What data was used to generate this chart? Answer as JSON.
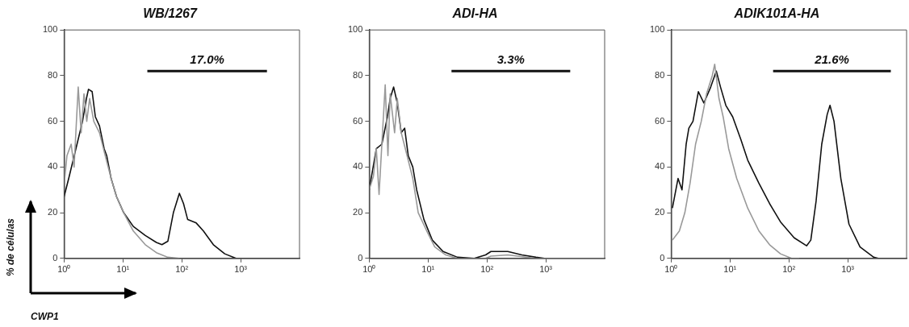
{
  "chart_data": [
    {
      "type": "line",
      "title": "WB/1267",
      "xlabel": "CWP1",
      "ylabel": "% de células",
      "log": "x",
      "xlim": [
        1,
        10000
      ],
      "xticks": [
        {
          "value": 1,
          "label": "10⁰"
        },
        {
          "value": 10,
          "label": "10¹"
        },
        {
          "value": 100,
          "label": "10²"
        },
        {
          "value": 1000,
          "label": "10³"
        }
      ],
      "ylim": [
        0,
        100
      ],
      "yticks": [
        0,
        20,
        40,
        60,
        80,
        100
      ],
      "grid": false,
      "legend": false,
      "marker": "none",
      "line_style": "solid",
      "annotations": [
        {
          "text": "17.0%",
          "x": 270,
          "y": 82
        }
      ],
      "series": [
        {
          "color": "#999999",
          "x": [
            1,
            1.12,
            1.32,
            1.48,
            1.74,
            1.95,
            2.18,
            2.43,
            2.72,
            3.2,
            4,
            5,
            6.3,
            7.8,
            10.3,
            15,
            24,
            37,
            58,
            91
          ],
          "values": [
            32,
            45,
            50,
            40,
            75,
            55,
            72,
            60,
            70,
            60,
            55,
            45,
            35,
            27,
            20,
            12,
            6,
            2.5,
            0.5,
            0
          ]
        },
        {
          "color": "#111111",
          "x": [
            1,
            1.2,
            1.66,
            2.06,
            2.4,
            2.6,
            3,
            3.4,
            4,
            4.8,
            5.3,
            6.3,
            7.8,
            10.3,
            15,
            24,
            37,
            46,
            58,
            72,
            91,
            107,
            126,
            176,
            233,
            344,
            537,
            835,
            10000
          ],
          "values": [
            27,
            35,
            50,
            60,
            70,
            74,
            73,
            62,
            58,
            48,
            45,
            35,
            27,
            20,
            14,
            10,
            7,
            6,
            7.5,
            20,
            28.5,
            24,
            17,
            15.5,
            12,
            6,
            2,
            0,
            0
          ]
        },
        {
          "color": "#111111",
          "x": [
            26,
            2800
          ],
          "values": [
            82,
            82
          ]
        }
      ]
    },
    {
      "type": "line",
      "title": "ADI-HA",
      "log": "x",
      "xlim": [
        1,
        10000
      ],
      "xticks": [
        {
          "value": 1,
          "label": "10⁰"
        },
        {
          "value": 10,
          "label": "10¹"
        },
        {
          "value": 100,
          "label": "10²"
        },
        {
          "value": 1000,
          "label": "10³"
        }
      ],
      "ylim": [
        0,
        100
      ],
      "yticks": [
        0,
        20,
        40,
        60,
        80,
        100
      ],
      "grid": false,
      "legend": false,
      "marker": "none",
      "line_style": "solid",
      "annotations": [
        {
          "text": "3.3%",
          "x": 255,
          "y": 82
        }
      ],
      "series": [
        {
          "color": "#999999",
          "x": [
            1,
            1.18,
            1.32,
            1.47,
            1.64,
            1.87,
            2.08,
            2.27,
            2.7,
            3,
            3.5,
            4.4,
            5.5,
            6.8,
            9.5,
            13,
            20,
            31.5,
            95,
            117,
            226,
            680,
            10000
          ],
          "values": [
            30,
            36,
            48,
            28,
            50,
            76,
            45,
            72,
            55,
            70,
            55,
            45,
            35,
            20,
            12,
            5,
            1.5,
            0,
            0,
            1,
            1.5,
            0,
            0
          ]
        },
        {
          "color": "#111111",
          "x": [
            1,
            1.32,
            1.64,
            2.04,
            2.27,
            2.6,
            3,
            3.5,
            4,
            4.6,
            5.5,
            6.4,
            8.5,
            11.8,
            18,
            31.5,
            61,
            95,
            117,
            226,
            392,
            680,
            950,
            10000
          ],
          "values": [
            30,
            48,
            50,
            62,
            70,
            75,
            68,
            55,
            57,
            45,
            40,
            30,
            17,
            8,
            3,
            0.5,
            0,
            1.5,
            3,
            3,
            1.5,
            0.5,
            0,
            0
          ]
        },
        {
          "color": "#111111",
          "x": [
            25,
            2600
          ],
          "values": [
            82,
            82
          ]
        }
      ]
    },
    {
      "type": "line",
      "title": "ADIK101A-HA",
      "log": "x",
      "xlim": [
        1,
        10000
      ],
      "xticks": [
        {
          "value": 1,
          "label": "10⁰"
        },
        {
          "value": 10,
          "label": "10¹"
        },
        {
          "value": 100,
          "label": "10²"
        },
        {
          "value": 1000,
          "label": "10³"
        }
      ],
      "ylim": [
        0,
        100
      ],
      "yticks": [
        0,
        20,
        40,
        60,
        80,
        100
      ],
      "grid": false,
      "legend": false,
      "marker": "none",
      "line_style": "solid",
      "annotations": [
        {
          "text": "21.6%",
          "x": 540,
          "y": 82
        }
      ],
      "series": [
        {
          "color": "#999999",
          "x": [
            1.05,
            1.38,
            1.71,
            2.1,
            2.6,
            3.25,
            4,
            5,
            5.5,
            6.5,
            7.65,
            9.5,
            13,
            20,
            31,
            47,
            72,
            111,
            150
          ],
          "values": [
            8,
            12,
            20,
            33,
            50,
            60,
            72,
            80,
            85,
            70,
            62,
            48,
            35,
            22,
            12,
            6,
            2,
            0,
            0
          ]
        },
        {
          "color": "#111111",
          "x": [
            1.05,
            1.31,
            1.53,
            1.8,
            2,
            2.35,
            2.9,
            3.6,
            4.7,
            5.85,
            6.9,
            8.5,
            11.1,
            15.3,
            20,
            30.8,
            47,
            72,
            123,
            200,
            236,
            290,
            362,
            448,
            500,
            585,
            764,
            1050,
            1620,
            2760,
            3300,
            10000
          ],
          "values": [
            22,
            35,
            30,
            50,
            57,
            60,
            73,
            68,
            75,
            82,
            75,
            67,
            62,
            52,
            43,
            33,
            24,
            16,
            9,
            5.5,
            8,
            25,
            50,
            63,
            67,
            60,
            35,
            15,
            5,
            0.5,
            0,
            0
          ]
        },
        {
          "color": "#111111",
          "x": [
            54,
            5400
          ],
          "values": [
            82,
            82
          ]
        }
      ]
    }
  ]
}
